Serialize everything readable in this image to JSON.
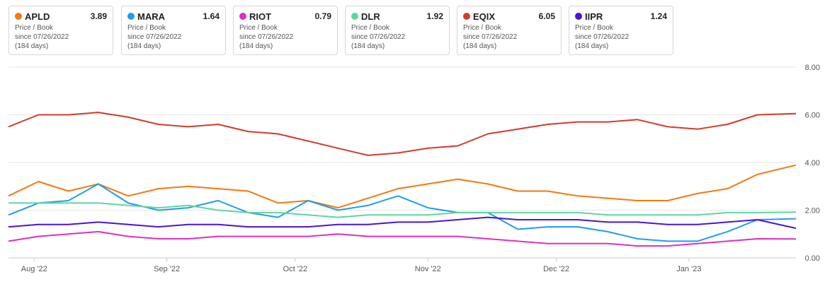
{
  "cards": [
    {
      "symbol": "APLD",
      "value": "3.89",
      "metric": "Price / Book",
      "since": "since 07/26/2022",
      "days": "(184 days)",
      "color": "#f5780f"
    },
    {
      "symbol": "MARA",
      "value": "1.64",
      "metric": "Price / Book",
      "since": "since 07/26/2022",
      "days": "(184 days)",
      "color": "#1e9ef0"
    },
    {
      "symbol": "RIOT",
      "value": "0.79",
      "metric": "Price / Book",
      "since": "since 07/26/2022",
      "days": "(184 days)",
      "color": "#e02fbd"
    },
    {
      "symbol": "DLR",
      "value": "1.92",
      "metric": "Price / Book",
      "since": "since 07/26/2022",
      "days": "(184 days)",
      "color": "#5ed6a0"
    },
    {
      "symbol": "EQIX",
      "value": "6.05",
      "metric": "Price / Book",
      "since": "since 07/26/2022",
      "days": "(184 days)",
      "color": "#d23b2d"
    },
    {
      "symbol": "IIPR",
      "value": "1.24",
      "metric": "Price / Book",
      "since": "since 07/26/2022",
      "days": "(184 days)",
      "color": "#4a14d6"
    }
  ],
  "chart_data": {
    "type": "line",
    "title": "",
    "xlabel": "",
    "ylabel": "",
    "x_range": [
      "2022-07-26",
      "2023-01-26"
    ],
    "ylim": [
      0,
      8
    ],
    "y_ticks": [
      "0.00",
      "2.00",
      "4.00",
      "6.00",
      "8.00"
    ],
    "x_ticks": [
      {
        "label": "Aug '22",
        "date": "2022-08-01"
      },
      {
        "label": "Sep '22",
        "date": "2022-09-01"
      },
      {
        "label": "Oct '22",
        "date": "2022-10-01"
      },
      {
        "label": "Nov '22",
        "date": "2022-11-01"
      },
      {
        "label": "Dec '22",
        "date": "2022-12-01"
      },
      {
        "label": "Jan '23",
        "date": "2023-01-01"
      }
    ],
    "grid": true,
    "y_axis_position": "right",
    "dates": [
      "2022-07-26",
      "2022-08-02",
      "2022-08-09",
      "2022-08-16",
      "2022-08-23",
      "2022-08-30",
      "2022-09-06",
      "2022-09-13",
      "2022-09-20",
      "2022-09-27",
      "2022-10-04",
      "2022-10-11",
      "2022-10-18",
      "2022-10-25",
      "2022-11-01",
      "2022-11-08",
      "2022-11-15",
      "2022-11-22",
      "2022-11-29",
      "2022-12-06",
      "2022-12-13",
      "2022-12-20",
      "2022-12-27",
      "2023-01-03",
      "2023-01-10",
      "2023-01-17",
      "2023-01-26"
    ],
    "series": [
      {
        "name": "EQIX",
        "color": "#d23b2d",
        "values": [
          5.5,
          6.0,
          6.0,
          6.1,
          5.9,
          5.6,
          5.5,
          5.6,
          5.3,
          5.2,
          4.9,
          4.6,
          4.3,
          4.4,
          4.6,
          4.7,
          5.2,
          5.4,
          5.6,
          5.7,
          5.7,
          5.8,
          5.5,
          5.4,
          5.6,
          6.0,
          6.05
        ]
      },
      {
        "name": "APLD",
        "color": "#f5780f",
        "values": [
          2.6,
          3.2,
          2.8,
          3.1,
          2.6,
          2.9,
          3.0,
          2.9,
          2.8,
          2.3,
          2.4,
          2.1,
          2.5,
          2.9,
          3.1,
          3.3,
          3.1,
          2.8,
          2.8,
          2.6,
          2.5,
          2.4,
          2.4,
          2.7,
          2.9,
          3.5,
          3.89
        ]
      },
      {
        "name": "MARA",
        "color": "#1e9ef0",
        "values": [
          1.8,
          2.3,
          2.4,
          3.1,
          2.3,
          2.0,
          2.1,
          2.4,
          1.9,
          1.7,
          2.4,
          2.0,
          2.2,
          2.6,
          2.1,
          1.9,
          1.9,
          1.2,
          1.3,
          1.3,
          1.1,
          0.8,
          0.7,
          0.7,
          1.1,
          1.6,
          1.64
        ]
      },
      {
        "name": "DLR",
        "color": "#5ed6a0",
        "values": [
          2.3,
          2.3,
          2.3,
          2.3,
          2.2,
          2.1,
          2.2,
          2.0,
          1.9,
          1.9,
          1.8,
          1.7,
          1.8,
          1.8,
          1.8,
          1.9,
          1.9,
          1.9,
          1.9,
          1.9,
          1.8,
          1.8,
          1.8,
          1.8,
          1.9,
          1.9,
          1.92
        ]
      },
      {
        "name": "IIPR",
        "color": "#4a14d6",
        "values": [
          1.3,
          1.4,
          1.4,
          1.5,
          1.4,
          1.3,
          1.4,
          1.4,
          1.3,
          1.3,
          1.3,
          1.4,
          1.4,
          1.5,
          1.5,
          1.6,
          1.7,
          1.6,
          1.6,
          1.6,
          1.5,
          1.5,
          1.4,
          1.4,
          1.5,
          1.6,
          1.24
        ]
      },
      {
        "name": "RIOT",
        "color": "#e02fbd",
        "values": [
          0.7,
          0.9,
          1.0,
          1.1,
          0.9,
          0.8,
          0.8,
          0.9,
          0.9,
          0.9,
          0.9,
          1.0,
          0.9,
          0.9,
          0.9,
          0.9,
          0.8,
          0.7,
          0.6,
          0.6,
          0.6,
          0.5,
          0.5,
          0.6,
          0.7,
          0.8,
          0.79
        ]
      }
    ]
  }
}
